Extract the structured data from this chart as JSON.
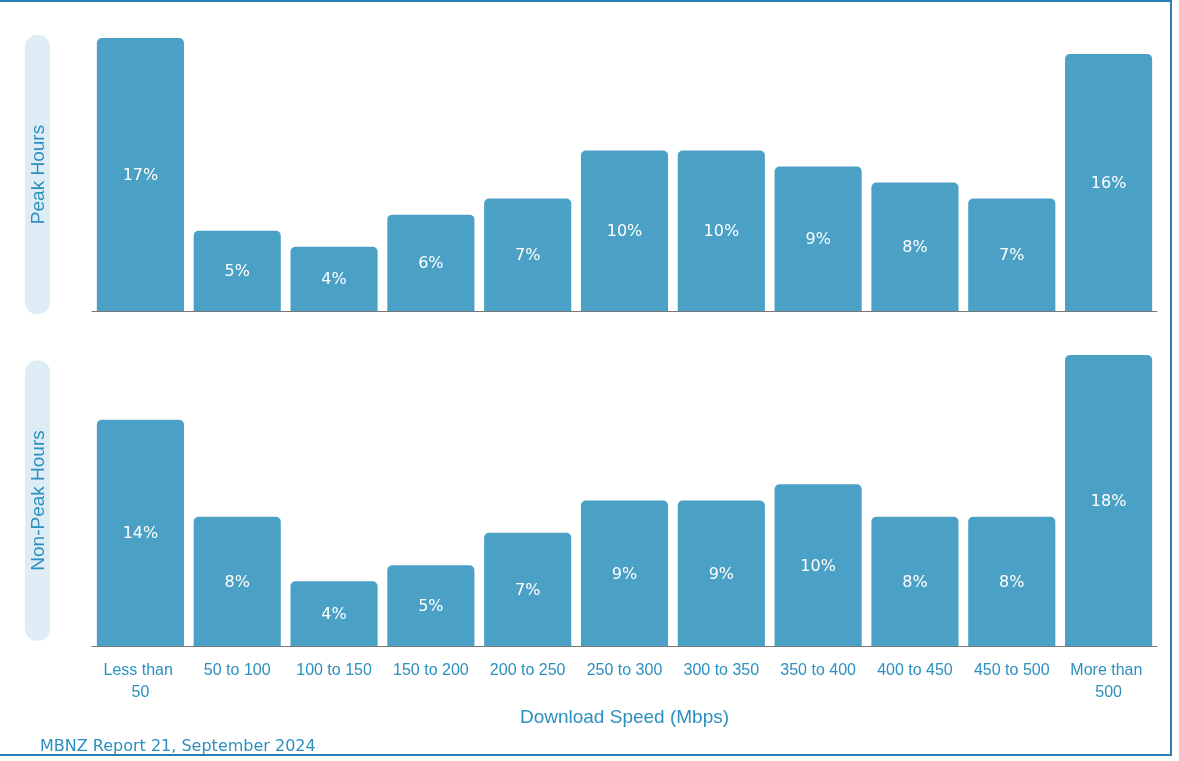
{
  "chart_data": [
    {
      "type": "bar",
      "ylabel": "Peak Hours",
      "categories": [
        "Less than 50",
        "50 to 100",
        "100 to 150",
        "150 to 200",
        "200 to 250",
        "250 to 300",
        "300 to 350",
        "350 to 400",
        "400 to 450",
        "450 to 500",
        "More than 500"
      ],
      "values": [
        17,
        5,
        4,
        6,
        7,
        10,
        10,
        9,
        8,
        7,
        16
      ],
      "color": "#4ba0c5",
      "data_labels": true,
      "value_labels": [
        "17%",
        "5%",
        "4%",
        "6%",
        "7%",
        "10%",
        "10%",
        "9%",
        "8%",
        "7%",
        "16%"
      ],
      "tick_labels": false
    },
    {
      "type": "bar",
      "ylabel": "Non-Peak Hours",
      "xlabel": "Download Speed (Mbps)",
      "categories": [
        "Less than 50",
        "50 to 100",
        "100 to 150",
        "150 to 200",
        "200 to 250",
        "250 to 300",
        "300 to 350",
        "350 to 400",
        "400 to 450",
        "450 to 500",
        "More than 500"
      ],
      "values": [
        14,
        8,
        4,
        5,
        7,
        9,
        9,
        10,
        8,
        8,
        18
      ],
      "color": "#4ba0c5",
      "data_labels": true,
      "value_labels": [
        "14%",
        "8%",
        "4%",
        "5%",
        "7%",
        "9%",
        "9%",
        "10%",
        "8%",
        "8%",
        "18%"
      ],
      "tick_labels": "x",
      "annotations": [
        "MBNZ Report 21, September 2024"
      ]
    }
  ]
}
